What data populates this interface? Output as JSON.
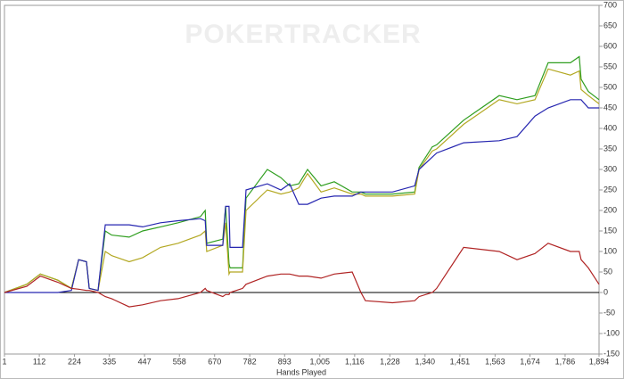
{
  "chart_data": {
    "type": "line",
    "watermark": "POKERTRACKER",
    "x_label": "Hands Played",
    "x": [
      1,
      72,
      115,
      171,
      214,
      237,
      262,
      271,
      299,
      322,
      342,
      398,
      441,
      498,
      554,
      625,
      640,
      645,
      696,
      705,
      716,
      719,
      759,
      770,
      838,
      881,
      909,
      938,
      966,
      1009,
      1051,
      1108,
      1136,
      1150,
      1236,
      1307,
      1321,
      1363,
      1377,
      1463,
      1576,
      1633,
      1690,
      1732,
      1803,
      1831,
      1837,
      1860,
      1894
    ],
    "series": [
      {
        "color": "#2f9e1f",
        "values": [
          0,
          20,
          45,
          30,
          10,
          80,
          75,
          10,
          5,
          150,
          140,
          135,
          150,
          160,
          170,
          185,
          200,
          120,
          130,
          210,
          70,
          60,
          60,
          230,
          300,
          280,
          260,
          265,
          300,
          260,
          270,
          245,
          245,
          240,
          240,
          245,
          305,
          355,
          360,
          420,
          480,
          470,
          480,
          560,
          560,
          575,
          520,
          490,
          470
        ]
      },
      {
        "color": "#b3a822",
        "values": [
          0,
          20,
          45,
          30,
          10,
          80,
          75,
          10,
          5,
          100,
          90,
          75,
          85,
          110,
          120,
          140,
          150,
          100,
          115,
          170,
          45,
          50,
          50,
          200,
          250,
          240,
          245,
          255,
          290,
          245,
          255,
          240,
          240,
          235,
          235,
          240,
          300,
          345,
          350,
          410,
          470,
          460,
          470,
          545,
          530,
          540,
          495,
          480,
          460
        ]
      },
      {
        "color": "#2626b0",
        "values": [
          0,
          0,
          0,
          0,
          5,
          80,
          75,
          10,
          5,
          165,
          165,
          165,
          160,
          170,
          175,
          180,
          175,
          115,
          115,
          210,
          210,
          110,
          110,
          250,
          265,
          250,
          265,
          215,
          215,
          230,
          235,
          235,
          245,
          245,
          245,
          260,
          300,
          330,
          340,
          365,
          370,
          380,
          430,
          450,
          470,
          470,
          470,
          450,
          450
        ]
      },
      {
        "color": "#b02424",
        "values": [
          0,
          15,
          40,
          25,
          10,
          8,
          5,
          5,
          0,
          -10,
          -15,
          -35,
          -30,
          -20,
          -15,
          0,
          10,
          5,
          -10,
          -5,
          -5,
          0,
          10,
          20,
          40,
          45,
          45,
          40,
          40,
          35,
          45,
          50,
          0,
          -20,
          -25,
          -20,
          -10,
          0,
          10,
          110,
          100,
          80,
          95,
          120,
          100,
          100,
          80,
          60,
          20
        ]
      }
    ],
    "xlim": [
      1,
      1894
    ],
    "xticks": [
      1,
      112,
      224,
      335,
      447,
      558,
      670,
      782,
      893,
      {
        "value": 1005,
        "label": "1,005"
      },
      {
        "value": 1116,
        "label": "1,116"
      },
      {
        "value": 1228,
        "label": "1,228"
      },
      {
        "value": 1340,
        "label": "1,340"
      },
      {
        "value": 1451,
        "label": "1,451"
      },
      {
        "value": 1563,
        "label": "1,563"
      },
      {
        "value": 1674,
        "label": "1,674"
      },
      {
        "value": 1786,
        "label": "1,786"
      },
      {
        "value": 1894,
        "label": "1,894"
      }
    ],
    "ylim": [
      -150,
      700
    ],
    "yticks": [
      -150,
      -100,
      -50,
      0,
      50,
      100,
      150,
      200,
      250,
      300,
      350,
      400,
      450,
      500,
      550,
      600,
      650,
      700
    ]
  }
}
